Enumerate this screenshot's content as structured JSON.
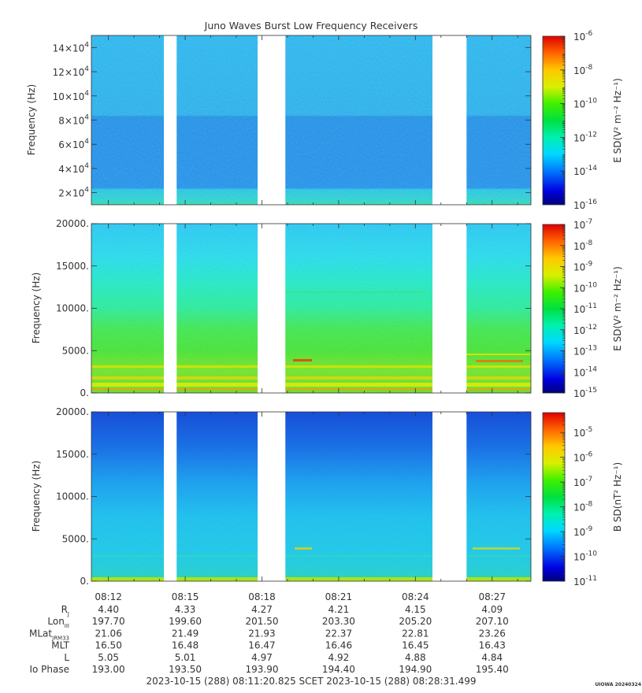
{
  "title": "Juno Waves Burst Low Frequency Receivers",
  "watermark": "UIOWA 20240324",
  "chart_data": [
    {
      "type": "heatmap",
      "ylabel": "Frequency (Hz)",
      "ylim": [
        10000,
        150000
      ],
      "yticks": [
        {
          "v": 20000,
          "base": "2×10",
          "exp": "4"
        },
        {
          "v": 40000,
          "base": "4×10",
          "exp": "4"
        },
        {
          "v": 60000,
          "base": "6×10",
          "exp": "4"
        },
        {
          "v": 80000,
          "base": "8×10",
          "exp": "4"
        },
        {
          "v": 100000,
          "base": "10×10",
          "exp": "4"
        },
        {
          "v": 120000,
          "base": "12×10",
          "exp": "4"
        },
        {
          "v": 140000,
          "base": "14×10",
          "exp": "4"
        }
      ],
      "colorbar": {
        "label": "E SD(V² m⁻² Hz⁻¹)",
        "scale": "log",
        "range_exp": [
          -16,
          -6
        ],
        "ticks": [
          {
            "base": "10",
            "exp": "-6"
          },
          {
            "base": "10",
            "exp": "-8"
          },
          {
            "base": "10",
            "exp": "-10"
          },
          {
            "base": "10",
            "exp": "-12"
          },
          {
            "base": "10",
            "exp": "-14"
          },
          {
            "base": "10",
            "exp": "-16"
          }
        ]
      }
    },
    {
      "type": "heatmap",
      "ylabel": "Frequency (Hz)",
      "ylim": [
        0,
        20000
      ],
      "yticks": [
        {
          "v": 0,
          "label": "0."
        },
        {
          "v": 5000,
          "label": "5000."
        },
        {
          "v": 10000,
          "label": "10000."
        },
        {
          "v": 15000,
          "label": "15000."
        },
        {
          "v": 20000,
          "label": "20000."
        }
      ],
      "colorbar": {
        "label": "E SD(V² m⁻² Hz⁻¹)",
        "scale": "log",
        "range_exp": [
          -15,
          -7
        ],
        "ticks": [
          {
            "base": "10",
            "exp": "-7"
          },
          {
            "base": "10",
            "exp": "-8"
          },
          {
            "base": "10",
            "exp": "-9"
          },
          {
            "base": "10",
            "exp": "-10"
          },
          {
            "base": "10",
            "exp": "-11"
          },
          {
            "base": "10",
            "exp": "-12"
          },
          {
            "base": "10",
            "exp": "-13"
          },
          {
            "base": "10",
            "exp": "-14"
          },
          {
            "base": "10",
            "exp": "-15"
          }
        ]
      }
    },
    {
      "type": "heatmap",
      "ylabel": "Frequency (Hz)",
      "ylim": [
        0,
        20000
      ],
      "yticks": [
        {
          "v": 0,
          "label": "0."
        },
        {
          "v": 5000,
          "label": "5000."
        },
        {
          "v": 10000,
          "label": "10000."
        },
        {
          "v": 15000,
          "label": "15000."
        },
        {
          "v": 20000,
          "label": "20000."
        }
      ],
      "colorbar": {
        "label": "B SD(nT² Hz⁻¹)",
        "scale": "log",
        "range_exp": [
          -11,
          -4.2
        ],
        "ticks": [
          {
            "base": "10",
            "exp": "-5"
          },
          {
            "base": "10",
            "exp": "-6"
          },
          {
            "base": "10",
            "exp": "-7"
          },
          {
            "base": "10",
            "exp": "-8"
          },
          {
            "base": "10",
            "exp": "-9"
          },
          {
            "base": "10",
            "exp": "-10"
          },
          {
            "base": "10",
            "exp": "-11"
          }
        ]
      }
    }
  ],
  "time_axis": {
    "start": "08:11:20",
    "end": "08:28:31",
    "ticks": [
      "08:12",
      "08:15",
      "08:18",
      "08:21",
      "08:24",
      "08:27"
    ],
    "data_gaps": [
      [
        "08:14:10",
        "08:14:40"
      ],
      [
        "08:17:50",
        "08:18:55"
      ],
      [
        "08:24:40",
        "08:26:00"
      ]
    ]
  },
  "ephemeris": {
    "rows": [
      {
        "label": "R",
        "sub": "J",
        "values": [
          "4.40",
          "4.33",
          "4.27",
          "4.21",
          "4.15",
          "4.09"
        ]
      },
      {
        "label": "Lon",
        "sub": "III",
        "values": [
          "197.70",
          "199.60",
          "201.50",
          "203.30",
          "205.20",
          "207.10"
        ]
      },
      {
        "label": "MLat",
        "sub": "JRM33",
        "values": [
          "21.06",
          "21.49",
          "21.93",
          "22.37",
          "22.81",
          "23.26"
        ]
      },
      {
        "label": "MLT",
        "sub": "",
        "values": [
          "16.50",
          "16.48",
          "16.47",
          "16.46",
          "16.45",
          "16.43"
        ]
      },
      {
        "label": "L",
        "sub": "",
        "values": [
          "5.05",
          "5.01",
          "4.97",
          "4.92",
          "4.88",
          "4.84"
        ]
      },
      {
        "label": "Io Phase",
        "sub": "",
        "values": [
          "193.00",
          "193.50",
          "193.90",
          "194.40",
          "194.90",
          "195.40"
        ]
      }
    ]
  },
  "footer": "2023-10-15 (288) 08:11:20.825    SCET    2023-10-15 (288) 08:28:31.499"
}
